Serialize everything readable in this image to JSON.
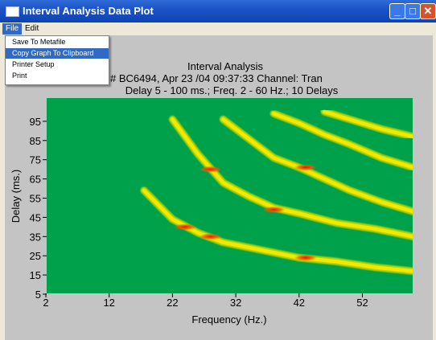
{
  "window": {
    "title": "Interval Analysis Data Plot",
    "min_glyph": "_",
    "max_glyph": "□",
    "close_glyph": "✕"
  },
  "menubar": {
    "file": "File",
    "edit": "Edit"
  },
  "file_menu": {
    "items": [
      "Save To Metafile",
      "Copy Graph To Clipboard",
      "Printer Setup",
      "Print"
    ],
    "highlighted_index": 1
  },
  "chart_data": {
    "type": "heatmap",
    "title": "Interval Analysis",
    "subtitle_line1": "# BC6494, Apr 23 /04 09:37:33  Channel: Tran",
    "subtitle_line2": "Delay 5 - 100 ms.; Freq. 2 - 60 Hz.; 10 Delays",
    "xlabel": "Frequency (Hz.)",
    "ylabel": "Delay (ms.)",
    "xlim": [
      2,
      60
    ],
    "ylim": [
      5,
      100
    ],
    "xticks": [
      "2",
      "12",
      "22",
      "32",
      "42",
      "52"
    ],
    "yticks": [
      "5",
      "15",
      "25",
      "35",
      "45",
      "55",
      "65",
      "75",
      "85",
      "95"
    ],
    "background_color": "#00a14b",
    "curves": [
      {
        "harmonic": 1,
        "points": [
          [
            17.5,
            59
          ],
          [
            22,
            44
          ],
          [
            26,
            37
          ],
          [
            30,
            32
          ],
          [
            36,
            28
          ],
          [
            42,
            24
          ],
          [
            48,
            22
          ],
          [
            54,
            19
          ],
          [
            60,
            17
          ]
        ]
      },
      {
        "harmonic": 2,
        "points": [
          [
            22,
            96
          ],
          [
            26,
            78
          ],
          [
            30,
            63
          ],
          [
            34,
            56
          ],
          [
            38,
            50
          ],
          [
            42,
            47
          ],
          [
            48,
            42
          ],
          [
            54,
            39
          ],
          [
            60,
            35
          ]
        ]
      },
      {
        "harmonic": 3,
        "points": [
          [
            30,
            96
          ],
          [
            34,
            86
          ],
          [
            38,
            76
          ],
          [
            42,
            71
          ],
          [
            46,
            65
          ],
          [
            50,
            59
          ],
          [
            55,
            53
          ],
          [
            60,
            48
          ]
        ]
      },
      {
        "harmonic": 4,
        "points": [
          [
            38,
            99
          ],
          [
            42,
            94
          ],
          [
            46,
            88
          ],
          [
            50,
            83
          ],
          [
            55,
            76
          ],
          [
            60,
            71
          ]
        ]
      },
      {
        "harmonic": 5,
        "points": [
          [
            46,
            100
          ],
          [
            50,
            96
          ],
          [
            55,
            91
          ],
          [
            60,
            87
          ]
        ]
      }
    ],
    "hotspots": [
      [
        24,
        40
      ],
      [
        28,
        35
      ],
      [
        38,
        49
      ],
      [
        28,
        70
      ],
      [
        43,
        71
      ],
      [
        43,
        24
      ]
    ],
    "grid": false
  }
}
